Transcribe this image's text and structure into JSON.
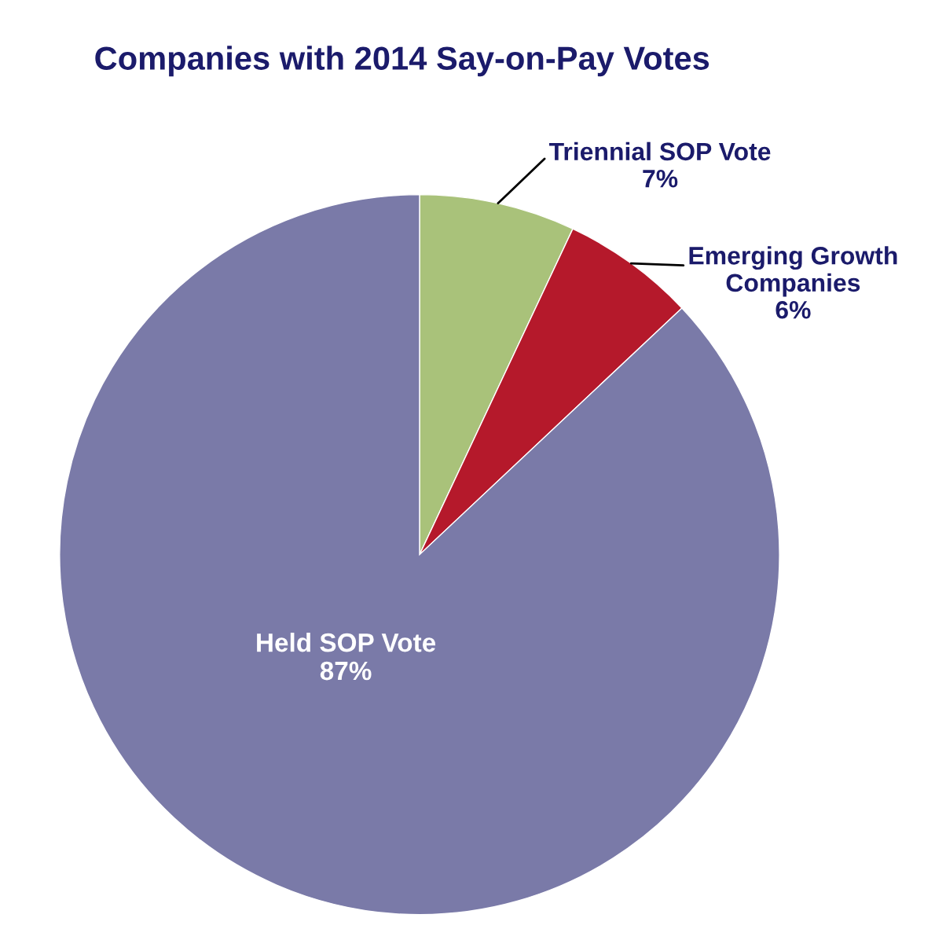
{
  "chart_data": {
    "type": "pie",
    "title": "Companies with 2014 Say-on-Pay Votes",
    "categories": [
      "Triennial SOP Vote",
      "Emerging Growth\nCompanies",
      "Held SOP Vote"
    ],
    "values": [
      7,
      6,
      87
    ],
    "colors": [
      "#a9c27a",
      "#b5192b",
      "#7a7aa8"
    ],
    "value_labels": [
      "7%",
      "6%",
      "87%"
    ]
  }
}
